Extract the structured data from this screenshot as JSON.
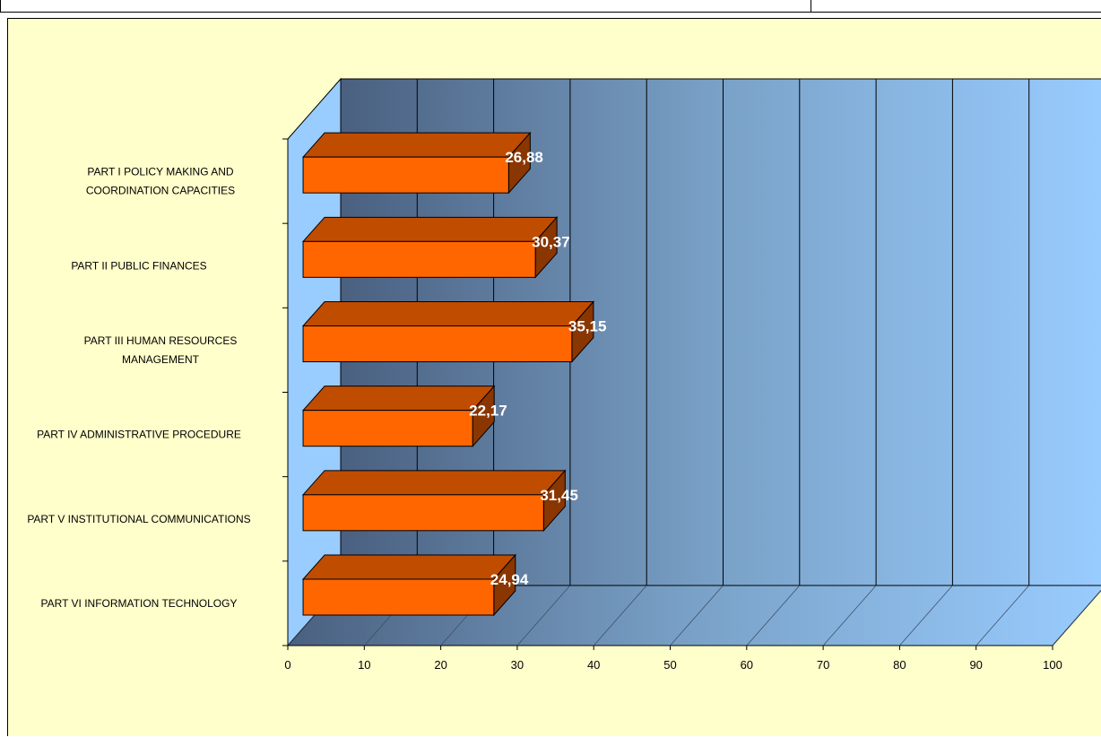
{
  "chart_data": {
    "type": "bar",
    "orientation": "horizontal",
    "style": "3d",
    "categories": [
      "PART I POLICY MAKING AND COORDINATION CAPACITIES",
      "PART II PUBLIC FINANCES",
      "PART III HUMAN RESOURCES MANAGEMENT",
      "PART IV ADMINISTRATIVE PROCEDURE",
      "PART V INSTITUTIONAL COMMUNICATIONS",
      "PART VI INFORMATION TECHNOLOGY"
    ],
    "category_lines": [
      [
        "PART I POLICY MAKING AND",
        "COORDINATION CAPACITIES"
      ],
      [
        "PART II PUBLIC FINANCES"
      ],
      [
        "PART III HUMAN RESOURCES",
        "MANAGEMENT"
      ],
      [
        "PART IV ADMINISTRATIVE PROCEDURE"
      ],
      [
        "PART V INSTITUTIONAL COMMUNICATIONS"
      ],
      [
        "PART VI INFORMATION TECHNOLOGY"
      ]
    ],
    "values": [
      26.88,
      30.37,
      35.15,
      22.17,
      31.45,
      24.94
    ],
    "data_labels": [
      "26,88",
      "30,37",
      "35,15",
      "22,17",
      "31,45",
      "24,94"
    ],
    "xlim": [
      0,
      100
    ],
    "xticks": [
      0,
      10,
      20,
      30,
      40,
      50,
      60,
      70,
      80,
      90,
      100
    ],
    "title": "",
    "xlabel": "",
    "ylabel": "",
    "grid": true,
    "legend": "none",
    "colors": {
      "bar_front": "#ff6600",
      "bar_top": "#c04c00",
      "bar_side": "#8a3600",
      "wall_dark": "#4a6080",
      "wall_light": "#99ccff",
      "background": "#ffffcc"
    }
  }
}
